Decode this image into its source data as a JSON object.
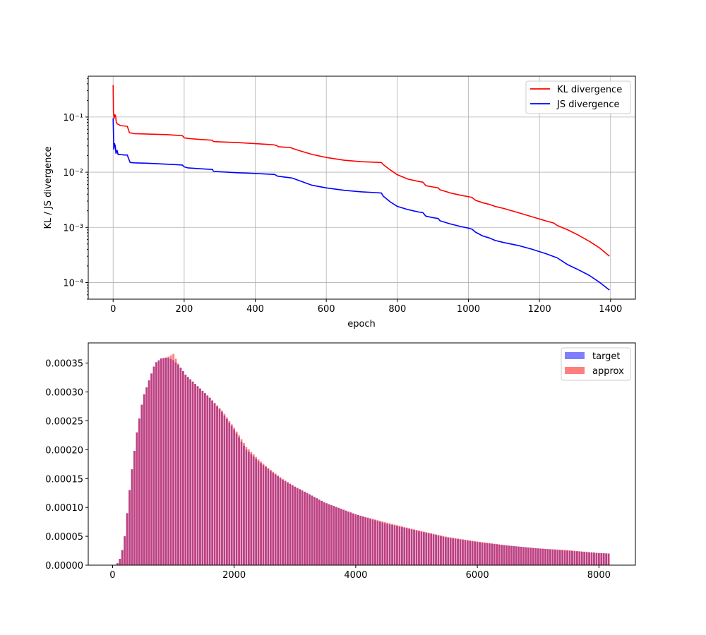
{
  "chart_data": [
    {
      "type": "line",
      "title": "",
      "xlabel": "epoch",
      "ylabel": "KL / JS divergence",
      "xlim": [
        -70,
        1470
      ],
      "ylim": [
        5e-05,
        0.55
      ],
      "yscale": "log",
      "grid": true,
      "legend_placement": "upper right",
      "xticks": [
        0,
        200,
        400,
        600,
        800,
        1000,
        1200,
        1400
      ],
      "xtick_labels": [
        "0",
        "200",
        "400",
        "600",
        "800",
        "1000",
        "1200",
        "1400"
      ],
      "yticks": [
        0.0001,
        0.001,
        0.01,
        0.1
      ],
      "ytick_labels": [
        "10⁻⁴",
        "10⁻³",
        "10⁻²",
        "10⁻¹"
      ],
      "series": [
        {
          "name": "KL divergence",
          "color": "#ff0000",
          "points": [
            [
              0,
              0.38
            ],
            [
              1,
              0.12
            ],
            [
              3,
              0.095
            ],
            [
              5,
              0.11
            ],
            [
              7,
              0.105
            ],
            [
              9,
              0.08
            ],
            [
              12,
              0.075
            ],
            [
              16,
              0.073
            ],
            [
              20,
              0.07
            ],
            [
              30,
              0.069
            ],
            [
              40,
              0.068
            ],
            [
              42,
              0.062
            ],
            [
              46,
              0.052
            ],
            [
              60,
              0.05
            ],
            [
              100,
              0.049
            ],
            [
              150,
              0.048
            ],
            [
              195,
              0.046
            ],
            [
              200,
              0.042
            ],
            [
              210,
              0.041
            ],
            [
              250,
              0.039
            ],
            [
              280,
              0.038
            ],
            [
              282,
              0.036
            ],
            [
              300,
              0.0355
            ],
            [
              350,
              0.0345
            ],
            [
              400,
              0.033
            ],
            [
              450,
              0.0315
            ],
            [
              460,
              0.0305
            ],
            [
              465,
              0.029
            ],
            [
              480,
              0.0285
            ],
            [
              500,
              0.028
            ],
            [
              505,
              0.027
            ],
            [
              530,
              0.024
            ],
            [
              560,
              0.021
            ],
            [
              600,
              0.0185
            ],
            [
              650,
              0.0165
            ],
            [
              700,
              0.0155
            ],
            [
              730,
              0.0152
            ],
            [
              755,
              0.015
            ],
            [
              760,
              0.0138
            ],
            [
              780,
              0.011
            ],
            [
              800,
              0.009
            ],
            [
              830,
              0.0075
            ],
            [
              860,
              0.0068
            ],
            [
              872,
              0.0066
            ],
            [
              880,
              0.0057
            ],
            [
              900,
              0.0054
            ],
            [
              915,
              0.0052
            ],
            [
              920,
              0.0048
            ],
            [
              950,
              0.0042
            ],
            [
              980,
              0.0038
            ],
            [
              1000,
              0.0036
            ],
            [
              1010,
              0.0035
            ],
            [
              1020,
              0.0031
            ],
            [
              1040,
              0.0028
            ],
            [
              1060,
              0.0026
            ],
            [
              1075,
              0.0024
            ],
            [
              1100,
              0.0022
            ],
            [
              1140,
              0.00185
            ],
            [
              1180,
              0.00155
            ],
            [
              1220,
              0.0013
            ],
            [
              1240,
              0.0012
            ],
            [
              1250,
              0.00108
            ],
            [
              1280,
              0.0009
            ],
            [
              1310,
              0.00072
            ],
            [
              1340,
              0.00056
            ],
            [
              1370,
              0.00042
            ],
            [
              1397,
              0.0003
            ]
          ]
        },
        {
          "name": "JS divergence",
          "color": "#0000ff",
          "points": [
            [
              0,
              0.095
            ],
            [
              1,
              0.05
            ],
            [
              2,
              0.026
            ],
            [
              4,
              0.033
            ],
            [
              6,
              0.03
            ],
            [
              8,
              0.022
            ],
            [
              11,
              0.025
            ],
            [
              14,
              0.021
            ],
            [
              20,
              0.021
            ],
            [
              30,
              0.0205
            ],
            [
              40,
              0.0205
            ],
            [
              43,
              0.018
            ],
            [
              48,
              0.015
            ],
            [
              60,
              0.0148
            ],
            [
              100,
              0.0145
            ],
            [
              150,
              0.014
            ],
            [
              195,
              0.0135
            ],
            [
              200,
              0.0125
            ],
            [
              210,
              0.012
            ],
            [
              250,
              0.0115
            ],
            [
              280,
              0.0112
            ],
            [
              282,
              0.0104
            ],
            [
              300,
              0.0102
            ],
            [
              350,
              0.0098
            ],
            [
              400,
              0.0095
            ],
            [
              455,
              0.0091
            ],
            [
              462,
              0.0085
            ],
            [
              480,
              0.0082
            ],
            [
              500,
              0.0079
            ],
            [
              505,
              0.0078
            ],
            [
              530,
              0.0068
            ],
            [
              560,
              0.0058
            ],
            [
              600,
              0.0052
            ],
            [
              650,
              0.0047
            ],
            [
              700,
              0.0044
            ],
            [
              730,
              0.0043
            ],
            [
              755,
              0.0042
            ],
            [
              760,
              0.0037
            ],
            [
              780,
              0.0029
            ],
            [
              800,
              0.0024
            ],
            [
              830,
              0.0021
            ],
            [
              860,
              0.0019
            ],
            [
              872,
              0.00185
            ],
            [
              880,
              0.0016
            ],
            [
              900,
              0.0015
            ],
            [
              915,
              0.00145
            ],
            [
              920,
              0.00132
            ],
            [
              950,
              0.00115
            ],
            [
              980,
              0.00103
            ],
            [
              1000,
              0.00097
            ],
            [
              1010,
              0.00093
            ],
            [
              1020,
              0.00082
            ],
            [
              1040,
              0.0007
            ],
            [
              1060,
              0.00064
            ],
            [
              1075,
              0.00058
            ],
            [
              1100,
              0.00053
            ],
            [
              1140,
              0.00047
            ],
            [
              1180,
              0.0004
            ],
            [
              1220,
              0.00033
            ],
            [
              1250,
              0.00028
            ],
            [
              1280,
              0.00021
            ],
            [
              1310,
              0.00017
            ],
            [
              1340,
              0.000135
            ],
            [
              1370,
              0.0001
            ],
            [
              1397,
              7.3e-05
            ]
          ]
        }
      ]
    },
    {
      "type": "bar",
      "title": "",
      "xlabel": "",
      "ylabel": "",
      "xlim": [
        -400,
        8600
      ],
      "ylim": [
        0,
        0.000385
      ],
      "grid": false,
      "legend_placement": "upper right",
      "xticks": [
        0,
        2000,
        4000,
        6000,
        8000
      ],
      "xtick_labels": [
        "0",
        "2000",
        "4000",
        "6000",
        "8000"
      ],
      "yticks": [
        0,
        5e-05,
        0.0001,
        0.00015,
        0.0002,
        0.00025,
        0.0003,
        0.00035
      ],
      "ytick_labels": [
        "0.00000",
        "0.00005",
        "0.00010",
        "0.00015",
        "0.00020",
        "0.00025",
        "0.00030",
        "0.00035"
      ],
      "bin_width": 40,
      "x_range": [
        0,
        8191
      ],
      "series": [
        {
          "name": "target",
          "color": "#0000ff",
          "opacity": 0.5,
          "profile": [
            [
              0,
              0
            ],
            [
              40,
              0
            ],
            [
              100,
              5e-06
            ],
            [
              150,
              2e-05
            ],
            [
              200,
              5e-05
            ],
            [
              250,
              0.0001
            ],
            [
              300,
              0.00015
            ],
            [
              350,
              0.00019
            ],
            [
              400,
              0.00023
            ],
            [
              450,
              0.00026
            ],
            [
              500,
              0.00029
            ],
            [
              600,
              0.00032
            ],
            [
              700,
              0.00035
            ],
            [
              800,
              0.000358
            ],
            [
              900,
              0.00036
            ],
            [
              1000,
              0.000355
            ],
            [
              1100,
              0.000345
            ],
            [
              1200,
              0.00033
            ],
            [
              1400,
              0.00031
            ],
            [
              1600,
              0.00029
            ],
            [
              1800,
              0.000265
            ],
            [
              2000,
              0.000235
            ],
            [
              2200,
              0.0002
            ],
            [
              2400,
              0.00018
            ],
            [
              2600,
              0.000163
            ],
            [
              2800,
              0.000148
            ],
            [
              3000,
              0.000136
            ],
            [
              3200,
              0.000125
            ],
            [
              3500,
              0.000108
            ],
            [
              4000,
              8.8e-05
            ],
            [
              4500,
              7.2e-05
            ],
            [
              5000,
              6e-05
            ],
            [
              5500,
              4.8e-05
            ],
            [
              6000,
              4e-05
            ],
            [
              6500,
              3.4e-05
            ],
            [
              7000,
              2.9e-05
            ],
            [
              7500,
              2.5e-05
            ],
            [
              8000,
              2.1e-05
            ],
            [
              8191,
              2e-05
            ]
          ]
        },
        {
          "name": "approx",
          "color": "#ff0000",
          "opacity": 0.5,
          "profile": [
            [
              0,
              0
            ],
            [
              40,
              0
            ],
            [
              100,
              5e-06
            ],
            [
              150,
              2e-05
            ],
            [
              200,
              5e-05
            ],
            [
              250,
              0.0001
            ],
            [
              300,
              0.00015
            ],
            [
              350,
              0.00019
            ],
            [
              400,
              0.00023
            ],
            [
              450,
              0.00026
            ],
            [
              500,
              0.00029
            ],
            [
              600,
              0.00032
            ],
            [
              700,
              0.00035
            ],
            [
              800,
              0.000358
            ],
            [
              900,
              0.00036
            ],
            [
              1000,
              0.000366
            ],
            [
              1100,
              0.000345
            ],
            [
              1200,
              0.00033
            ],
            [
              1400,
              0.00031
            ],
            [
              1600,
              0.00029
            ],
            [
              1800,
              0.000268
            ],
            [
              2000,
              0.000238
            ],
            [
              2200,
              0.000205
            ],
            [
              2400,
              0.000183
            ],
            [
              2600,
              0.000165
            ],
            [
              2800,
              0.000149
            ],
            [
              3000,
              0.000136
            ],
            [
              3200,
              0.000125
            ],
            [
              3500,
              0.000108
            ],
            [
              4000,
              8.8e-05
            ],
            [
              4500,
              7.4e-05
            ],
            [
              5000,
              6.1e-05
            ],
            [
              5500,
              4.9e-05
            ],
            [
              6000,
              4.1e-05
            ],
            [
              6500,
              3.4e-05
            ],
            [
              7000,
              2.9e-05
            ],
            [
              7500,
              2.6e-05
            ],
            [
              8000,
              2.1e-05
            ],
            [
              8191,
              2e-05
            ]
          ]
        }
      ]
    }
  ]
}
